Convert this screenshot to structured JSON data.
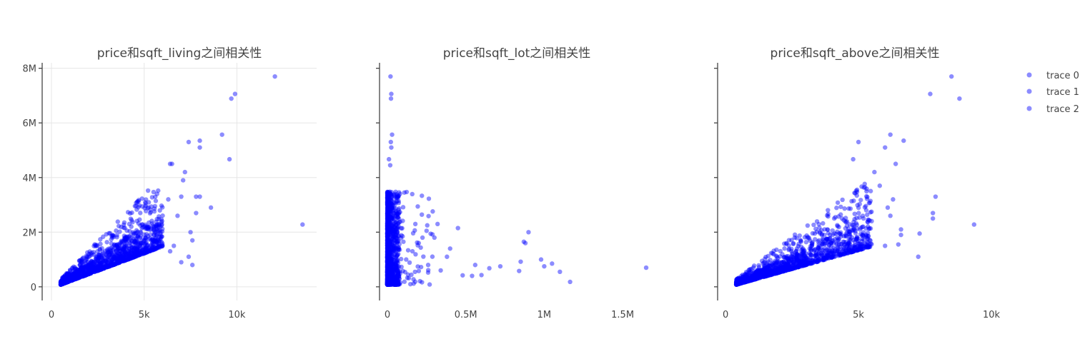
{
  "colors": {
    "marker": "#0000ff",
    "axis": "#444444",
    "grid": "#e6e6e6"
  },
  "legend": {
    "position": "top-right",
    "items": [
      "trace 0",
      "trace 1",
      "trace 2"
    ]
  },
  "chart_data": [
    {
      "type": "scatter",
      "title": "price和sqft_living之间相关性",
      "series_name": "trace 0",
      "xlim": [
        -500,
        14300
      ],
      "ylim": [
        -500000,
        8200000
      ],
      "xticks": [
        0,
        5000,
        10000
      ],
      "xtick_labels": [
        "0",
        "5k",
        "10k"
      ],
      "yticks": [
        0,
        2000000,
        4000000,
        6000000,
        8000000
      ],
      "ytick_labels": [
        "0",
        "2M",
        "4M",
        "6M",
        "8M"
      ],
      "grid": true,
      "cluster": {
        "x_range": [
          500,
          6000
        ],
        "y_range": [
          80000,
          3600000
        ],
        "count": 1400
      },
      "outliers": [
        [
          12050,
          7700000
        ],
        [
          9900,
          7060000
        ],
        [
          9700,
          6890000
        ],
        [
          9200,
          5570000
        ],
        [
          9600,
          4670000
        ],
        [
          7400,
          5300000
        ],
        [
          8000,
          5350000
        ],
        [
          8000,
          5100000
        ],
        [
          13540,
          2280000
        ],
        [
          8600,
          2900000
        ],
        [
          7200,
          4200000
        ],
        [
          6500,
          4500000
        ],
        [
          6400,
          4500000
        ],
        [
          7100,
          3900000
        ],
        [
          7000,
          3300000
        ],
        [
          7800,
          3300000
        ],
        [
          8000,
          3300000
        ],
        [
          7800,
          2700000
        ],
        [
          7500,
          2000000
        ],
        [
          7400,
          1100000
        ],
        [
          7600,
          1700000
        ],
        [
          7600,
          800000
        ],
        [
          7000,
          900000
        ],
        [
          6800,
          2600000
        ],
        [
          6600,
          1500000
        ],
        [
          6400,
          1300000
        ],
        [
          6300,
          3200000
        ]
      ]
    },
    {
      "type": "scatter",
      "title": "price和sqft_lot之间相关性",
      "series_name": "trace 1",
      "xlim": [
        -50000,
        1700000
      ],
      "ylim": [
        -500000,
        8200000
      ],
      "xticks": [
        0,
        500000,
        1000000,
        1500000
      ],
      "xtick_labels": [
        "0",
        "0.5M",
        "1M",
        "1.5M"
      ],
      "yticks": [
        0,
        2000000,
        4000000,
        6000000,
        8000000
      ],
      "ytick_labels": [],
      "grid": false,
      "cluster": {
        "x_range": [
          0,
          60000
        ],
        "y_range": [
          80000,
          3600000
        ],
        "count": 1300
      },
      "outliers": [
        [
          20000,
          7700000
        ],
        [
          25000,
          7060000
        ],
        [
          23000,
          6890000
        ],
        [
          30000,
          5570000
        ],
        [
          22000,
          5300000
        ],
        [
          25000,
          5100000
        ],
        [
          10000,
          4670000
        ],
        [
          18000,
          4450000
        ],
        [
          30000,
          3300000
        ],
        [
          1650000,
          700000
        ],
        [
          1165000,
          180000
        ],
        [
          1100000,
          550000
        ],
        [
          1050000,
          850000
        ],
        [
          1000000,
          750000
        ],
        [
          980000,
          1000000
        ],
        [
          900000,
          2000000
        ],
        [
          880000,
          1600000
        ],
        [
          870000,
          1650000
        ],
        [
          850000,
          920000
        ],
        [
          840000,
          580000
        ],
        [
          720000,
          750000
        ],
        [
          650000,
          680000
        ],
        [
          600000,
          430000
        ],
        [
          540000,
          400000
        ],
        [
          450000,
          2150000
        ],
        [
          400000,
          1400000
        ],
        [
          380000,
          1100000
        ],
        [
          320000,
          2300000
        ],
        [
          300000,
          1800000
        ],
        [
          250000,
          2050000
        ],
        [
          200000,
          1600000
        ],
        [
          120000,
          1000000
        ],
        [
          160000,
          1300000
        ],
        [
          260000,
          800000
        ],
        [
          340000,
          600000
        ],
        [
          480000,
          420000
        ],
        [
          560000,
          800000
        ]
      ]
    },
    {
      "type": "scatter",
      "title": "price和sqft_above之间相关性",
      "series_name": "trace 2",
      "xlim": [
        -300,
        10000
      ],
      "ylim": [
        -500000,
        8200000
      ],
      "xticks": [
        0,
        5000,
        10000
      ],
      "xtick_labels": [
        "0",
        "5k",
        "10k"
      ],
      "yticks": [
        0,
        2000000,
        4000000,
        6000000,
        8000000
      ],
      "ytick_labels": [],
      "grid": false,
      "cluster": {
        "x_range": [
          400,
          5500
        ],
        "y_range": [
          80000,
          3600000
        ],
        "count": 1400
      },
      "outliers": [
        [
          8500,
          7700000
        ],
        [
          7700,
          7060000
        ],
        [
          8800,
          6890000
        ],
        [
          6200,
          5570000
        ],
        [
          6700,
          5350000
        ],
        [
          5000,
          5300000
        ],
        [
          6000,
          5100000
        ],
        [
          4800,
          4670000
        ],
        [
          6400,
          4500000
        ],
        [
          5600,
          4200000
        ],
        [
          9350,
          2280000
        ],
        [
          7900,
          3300000
        ],
        [
          7800,
          2700000
        ],
        [
          7800,
          2500000
        ],
        [
          7300,
          1950000
        ],
        [
          7250,
          1100000
        ],
        [
          6600,
          2100000
        ],
        [
          6500,
          1550000
        ],
        [
          6300,
          3200000
        ],
        [
          6100,
          2900000
        ],
        [
          6000,
          1500000
        ],
        [
          6200,
          2600000
        ],
        [
          5800,
          3700000
        ],
        [
          6600,
          1900000
        ]
      ]
    }
  ]
}
